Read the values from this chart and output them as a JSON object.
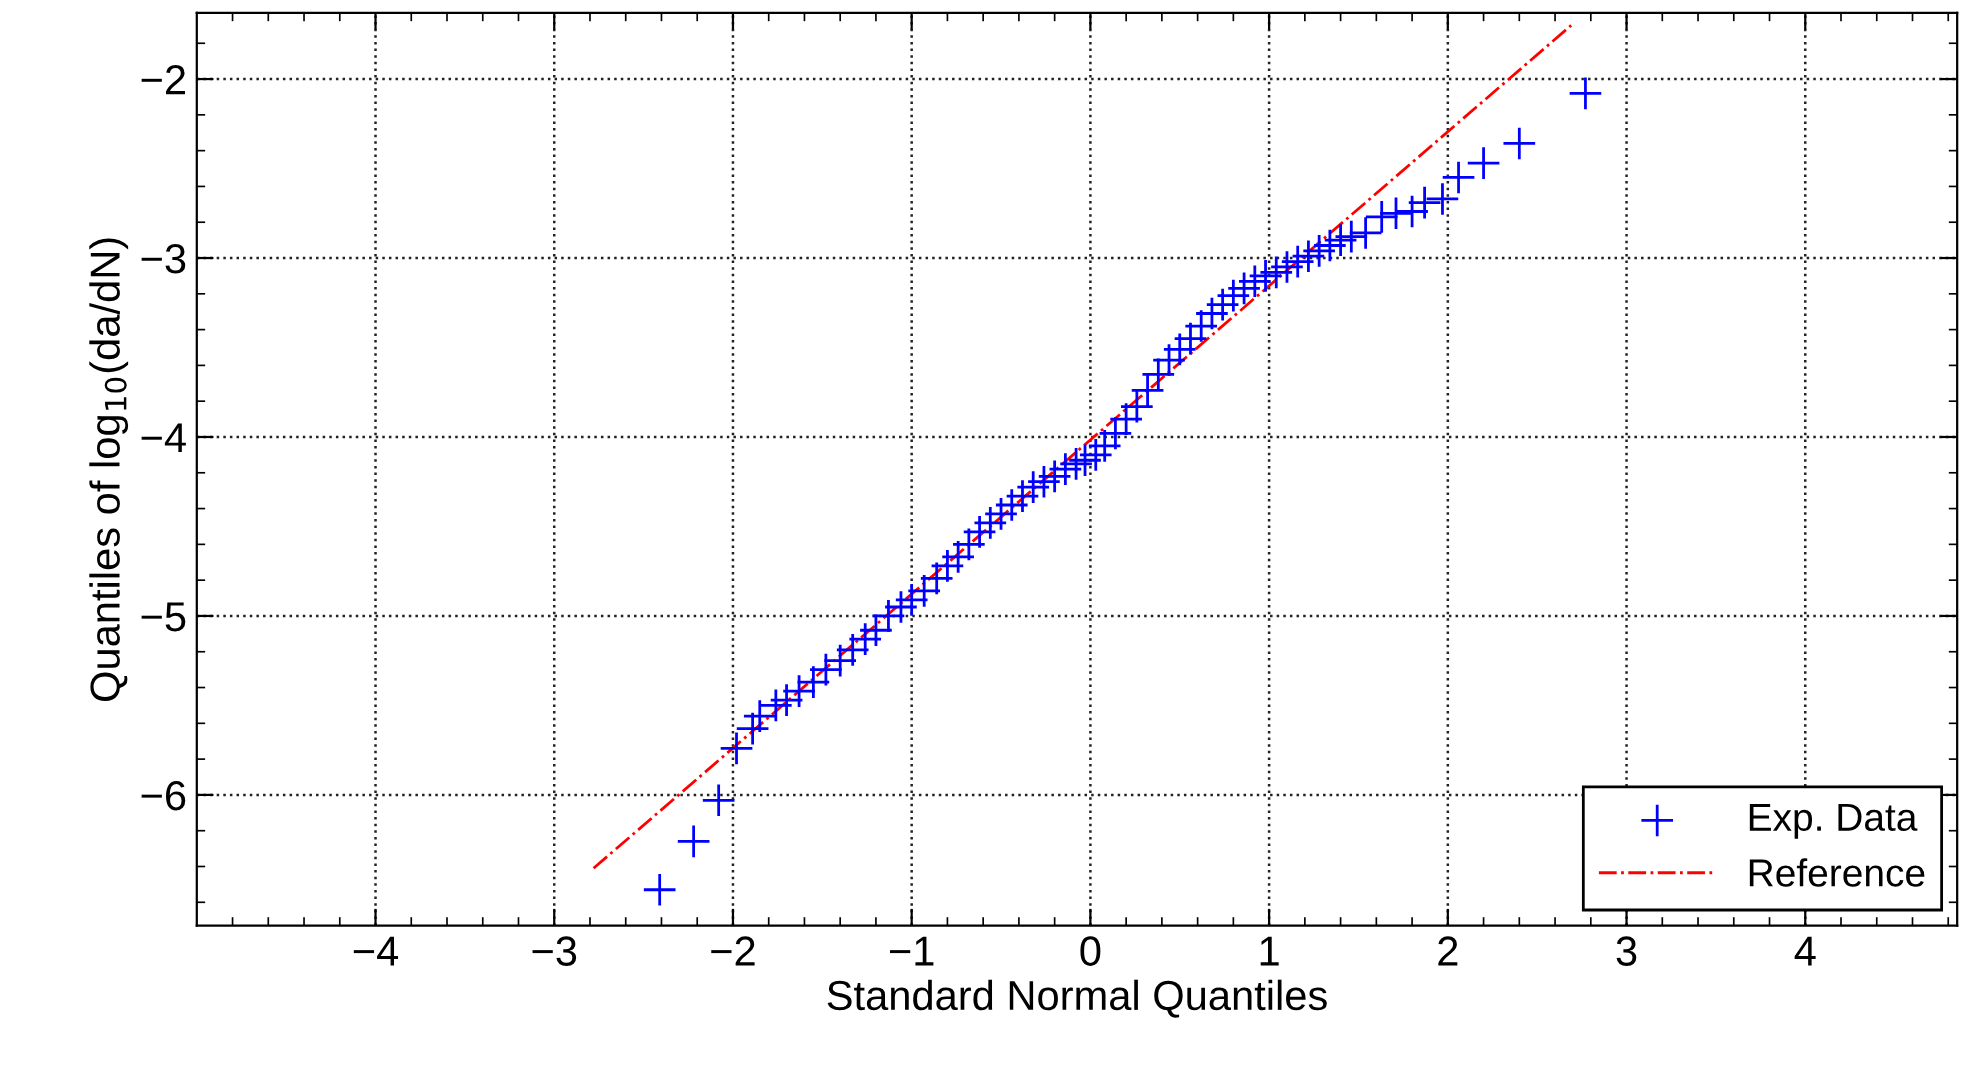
{
  "chart_data": {
    "type": "scatter",
    "xlabel": "Standard Normal Quantiles",
    "ylabel": "Quantiles of log$_{10}$(da/dN)",
    "xlim": [
      -5,
      4.85
    ],
    "ylim": [
      -6.73,
      -1.63
    ],
    "xticks": [
      {
        "value": -4.8,
        "label": null
      },
      {
        "value": -4.6,
        "label": null
      },
      {
        "value": -4.4,
        "label": null
      },
      {
        "value": -4.2,
        "label": null
      },
      {
        "value": -4,
        "label": "−4"
      },
      {
        "value": -3.8,
        "label": null
      },
      {
        "value": -3.6,
        "label": null
      },
      {
        "value": -3.4,
        "label": null
      },
      {
        "value": -3.2,
        "label": null
      },
      {
        "value": -3,
        "label": "−3"
      },
      {
        "value": -2.8,
        "label": null
      },
      {
        "value": -2.6,
        "label": null
      },
      {
        "value": -2.4,
        "label": null
      },
      {
        "value": -2.2,
        "label": null
      },
      {
        "value": -2,
        "label": "−2"
      },
      {
        "value": -1.8,
        "label": null
      },
      {
        "value": -1.6,
        "label": null
      },
      {
        "value": -1.4,
        "label": null
      },
      {
        "value": -1.2,
        "label": null
      },
      {
        "value": -1,
        "label": "−1"
      },
      {
        "value": -0.8,
        "label": null
      },
      {
        "value": -0.6,
        "label": null
      },
      {
        "value": -0.4,
        "label": null
      },
      {
        "value": -0.2,
        "label": null
      },
      0,
      {
        "value": 0.2,
        "label": null
      },
      {
        "value": 0.4,
        "label": null
      },
      {
        "value": 0.6,
        "label": null
      },
      {
        "value": 0.8,
        "label": null
      },
      1,
      {
        "value": 1.2,
        "label": null
      },
      {
        "value": 1.4,
        "label": null
      },
      {
        "value": 1.6,
        "label": null
      },
      {
        "value": 1.8,
        "label": null
      },
      2,
      {
        "value": 2.2,
        "label": null
      },
      {
        "value": 2.4,
        "label": null
      },
      {
        "value": 2.6,
        "label": null
      },
      {
        "value": 2.8,
        "label": null
      },
      3,
      {
        "value": 3.2,
        "label": null
      },
      {
        "value": 3.4,
        "label": null
      },
      {
        "value": 3.6,
        "label": null
      },
      {
        "value": 3.8,
        "label": null
      },
      4,
      {
        "value": 4.2,
        "label": null
      },
      {
        "value": 4.4,
        "label": null
      },
      {
        "value": 4.6,
        "label": null
      },
      {
        "value": 4.8,
        "label": null
      }
    ],
    "yticks": [
      {
        "value": -6.6,
        "label": null
      },
      {
        "value": -6.4,
        "label": null
      },
      {
        "value": -6.2,
        "label": null
      },
      {
        "value": -6,
        "label": "−6"
      },
      {
        "value": -5.8,
        "label": null
      },
      {
        "value": -5.6,
        "label": null
      },
      {
        "value": -5.4,
        "label": null
      },
      {
        "value": -5.2,
        "label": null
      },
      {
        "value": -5,
        "label": "−5"
      },
      {
        "value": -4.8,
        "label": null
      },
      {
        "value": -4.6,
        "label": null
      },
      {
        "value": -4.4,
        "label": null
      },
      {
        "value": -4.2,
        "label": null
      },
      {
        "value": -4,
        "label": "−4"
      },
      {
        "value": -3.8,
        "label": null
      },
      {
        "value": -3.6,
        "label": null
      },
      {
        "value": -3.4,
        "label": null
      },
      {
        "value": -3.2,
        "label": null
      },
      {
        "value": -3,
        "label": "−3"
      },
      {
        "value": -2.8,
        "label": null
      },
      {
        "value": -2.6,
        "label": null
      },
      {
        "value": -2.4,
        "label": null
      },
      {
        "value": -2.2,
        "label": null
      },
      {
        "value": -2,
        "label": "−2"
      },
      {
        "value": -1.8,
        "label": null
      }
    ],
    "grid": true,
    "legend": "bottom right",
    "series": [
      {
        "name": "Exp. Data",
        "marker": "cross",
        "color": "#0000ff",
        "x": [
          -2.41,
          -2.22,
          -2.08,
          -1.98,
          -1.89,
          -1.85,
          -1.76,
          -1.7,
          -1.63,
          -1.55,
          -1.48,
          -1.4,
          -1.33,
          -1.26,
          -1.2,
          -1.13,
          -1.06,
          -1.0,
          -0.93,
          -0.86,
          -0.8,
          -0.74,
          -0.68,
          -0.62,
          -0.56,
          -0.5,
          -0.44,
          -0.38,
          -0.32,
          -0.26,
          -0.2,
          -0.14,
          -0.08,
          -0.03,
          0.03,
          0.08,
          0.14,
          0.2,
          0.26,
          0.32,
          0.38,
          0.44,
          0.5,
          0.56,
          0.62,
          0.68,
          0.74,
          0.8,
          0.86,
          0.92,
          0.98,
          1.04,
          1.1,
          1.16,
          1.22,
          1.28,
          1.34,
          1.4,
          1.46,
          1.54,
          1.63,
          1.71,
          1.8,
          1.87,
          1.97,
          2.06,
          2.2,
          2.4,
          2.77
        ],
        "values": [
          -6.53,
          -6.26,
          -6.03,
          -5.74,
          -5.63,
          -5.56,
          -5.5,
          -5.47,
          -5.42,
          -5.37,
          -5.3,
          -5.25,
          -5.19,
          -5.13,
          -5.08,
          -5.0,
          -4.95,
          -4.91,
          -4.86,
          -4.79,
          -4.72,
          -4.67,
          -4.6,
          -4.53,
          -4.48,
          -4.43,
          -4.38,
          -4.33,
          -4.28,
          -4.25,
          -4.22,
          -4.18,
          -4.15,
          -4.13,
          -4.1,
          -4.05,
          -3.98,
          -3.9,
          -3.83,
          -3.74,
          -3.65,
          -3.57,
          -3.51,
          -3.45,
          -3.38,
          -3.31,
          -3.26,
          -3.21,
          -3.17,
          -3.13,
          -3.1,
          -3.08,
          -3.05,
          -3.02,
          -2.99,
          -2.96,
          -2.93,
          -2.9,
          -2.88,
          -2.86,
          -2.77,
          -2.75,
          -2.74,
          -2.69,
          -2.67,
          -2.55,
          -2.47,
          -2.36,
          -2.08
        ]
      },
      {
        "name": "Reference",
        "type": "line",
        "line_style": "dashdot",
        "marker": "none",
        "color": "#ff0000",
        "x": [
          -2.78,
          2.69
        ],
        "values": [
          -6.41,
          -1.7
        ]
      }
    ]
  }
}
